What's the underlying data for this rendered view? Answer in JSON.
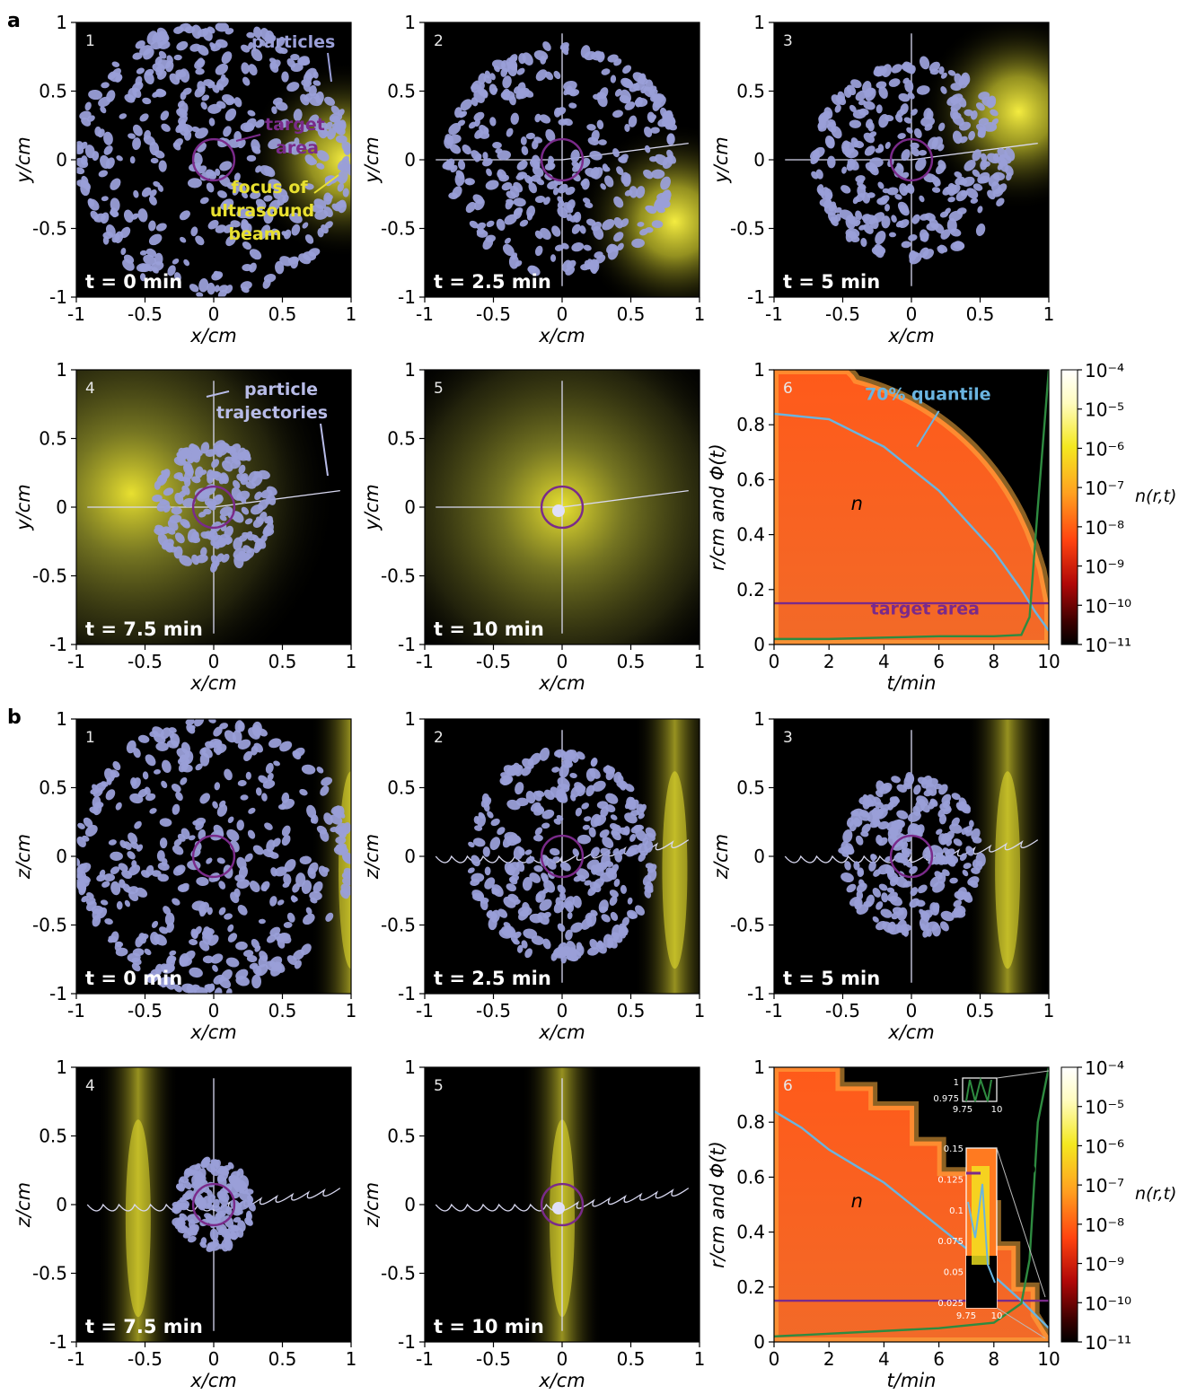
{
  "figure": {
    "section_a": "a",
    "section_b": "b",
    "axis": {
      "xlabel": "x/cm",
      "ylabel_a": "y/cm",
      "ylabel_b": "z/cm",
      "ticks": [
        "-1",
        "-0.5",
        "0",
        "0.5",
        "1"
      ],
      "rlabel": "r/cm and Φ(t)",
      "tlabel": "t/min",
      "rticks": [
        "0",
        "0.2",
        "0.4",
        "0.6",
        "0.8",
        "1"
      ],
      "tticks": [
        "0",
        "2",
        "4",
        "6",
        "8",
        "10"
      ]
    },
    "snapshots": [
      {
        "panel": "1",
        "time": "t = 0 min",
        "radius": 1.0
      },
      {
        "panel": "2",
        "time": "t = 2.5 min",
        "radius": 0.84
      },
      {
        "panel": "3",
        "time": "t = 5 min",
        "radius": 0.72
      },
      {
        "panel": "4",
        "time": "t = 7.5 min",
        "radius": 0.45
      },
      {
        "panel": "5",
        "time": "t = 10 min",
        "radius": 0.08
      }
    ],
    "snapshots_b_radius": [
      1.0,
      0.76,
      0.58,
      0.32,
      0.05
    ],
    "panel6": {
      "number": "6",
      "quantile_label": "70% quantile",
      "phi_label": "Φ",
      "n_label": "n",
      "target_label": "target area",
      "target_radius": 0.15,
      "colorbar_label": "n(r,t)",
      "colorbar_ticks": [
        "10⁻⁴",
        "10⁻⁵",
        "10⁻⁶",
        "10⁻⁷",
        "10⁻⁸",
        "10⁻⁹",
        "10⁻¹⁰",
        "10⁻¹¹"
      ]
    },
    "inset_top": {
      "y_ticks": [
        "1",
        "0.975"
      ],
      "x_ticks": [
        "9.75",
        "10"
      ]
    },
    "inset_bottom": {
      "y_ticks": [
        "0.15",
        "0.125",
        "0.1",
        "0.075",
        "0.05",
        "0.025"
      ],
      "x_ticks": [
        "9.75",
        "10"
      ]
    },
    "annotations": {
      "particles": "particles",
      "target_area": "target area",
      "focus": "focus of ultrasound beam",
      "trajectories": "particle trajectories"
    },
    "colors": {
      "particle": "#9a9fd8",
      "target": "#7a2a8a",
      "focus": "#e8e030",
      "quantile": "#6ab4e0",
      "phi": "#2e8b40"
    },
    "chart_data": [
      {
        "type": "area",
        "title": "",
        "xlabel": "t/min",
        "ylabel": "r/cm and Φ(t)",
        "xlim": [
          0,
          10
        ],
        "ylim": [
          0,
          1
        ],
        "series": [
          {
            "name": "70% quantile",
            "x": [
              0,
              2,
              4,
              6,
              8,
              9,
              9.5,
              10
            ],
            "values": [
              0.84,
              0.82,
              0.72,
              0.56,
              0.34,
              0.2,
              0.12,
              0.05
            ]
          },
          {
            "name": "Φ",
            "x": [
              0,
              2,
              4,
              6,
              8,
              9,
              9.3,
              9.6,
              10
            ],
            "values": [
              0.02,
              0.02,
              0.025,
              0.03,
              0.03,
              0.035,
              0.1,
              0.5,
              1.0
            ]
          }
        ]
      },
      {
        "type": "area",
        "title": "",
        "xlabel": "t/min",
        "ylabel": "r/cm and Φ(t)",
        "xlim": [
          0,
          10
        ],
        "ylim": [
          0,
          1
        ],
        "series": [
          {
            "name": "70% quantile",
            "x": [
              0,
              1,
              2,
              3,
              4,
              5,
              6,
              7,
              8,
              9,
              10
            ],
            "values": [
              0.84,
              0.78,
              0.7,
              0.64,
              0.58,
              0.5,
              0.42,
              0.34,
              0.24,
              0.15,
              0.05
            ]
          },
          {
            "name": "Φ",
            "x": [
              0,
              2,
              4,
              6,
              8,
              9,
              9.3,
              9.6,
              10
            ],
            "values": [
              0.02,
              0.03,
              0.04,
              0.05,
              0.07,
              0.14,
              0.3,
              0.8,
              1.0
            ]
          }
        ]
      }
    ]
  }
}
